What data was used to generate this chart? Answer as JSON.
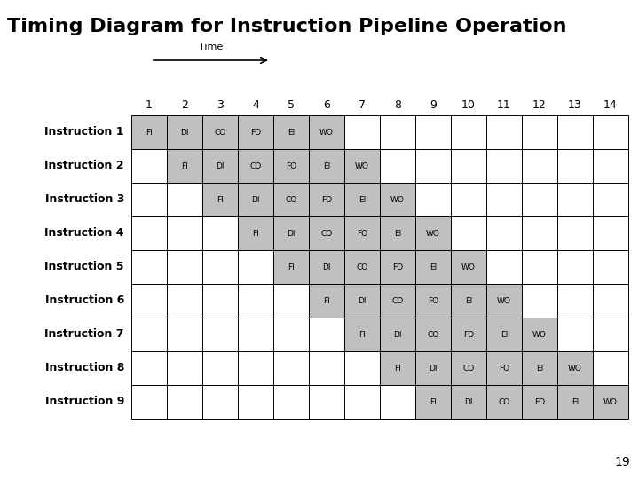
{
  "title": "Timing Diagram for Instruction Pipeline Operation",
  "title_fontsize": 16,
  "time_label": "Time",
  "num_cols": 14,
  "num_rows": 9,
  "col_labels": [
    "1",
    "2",
    "3",
    "4",
    "5",
    "6",
    "7",
    "8",
    "9",
    "10",
    "11",
    "12",
    "13",
    "14"
  ],
  "row_labels": [
    "Instruction 1",
    "Instruction 2",
    "Instruction 3",
    "Instruction 4",
    "Instruction 5",
    "Instruction 6",
    "Instruction 7",
    "Instruction 8",
    "Instruction 9"
  ],
  "stages": [
    "FI",
    "DI",
    "CO",
    "FO",
    "EI",
    "WO"
  ],
  "stage_start_cols": [
    1,
    2,
    3,
    4,
    5,
    6,
    7,
    8,
    9
  ],
  "cell_fill_color": "#c0c0c0",
  "cell_empty_color": "#ffffff",
  "grid_color": "#000000",
  "text_color": "#000000",
  "page_number": "19",
  "background_color": "#ffffff",
  "cell_font_size": 6.5,
  "row_label_fontsize": 9,
  "col_label_fontsize": 9,
  "time_fontsize": 8,
  "page_fontsize": 10
}
